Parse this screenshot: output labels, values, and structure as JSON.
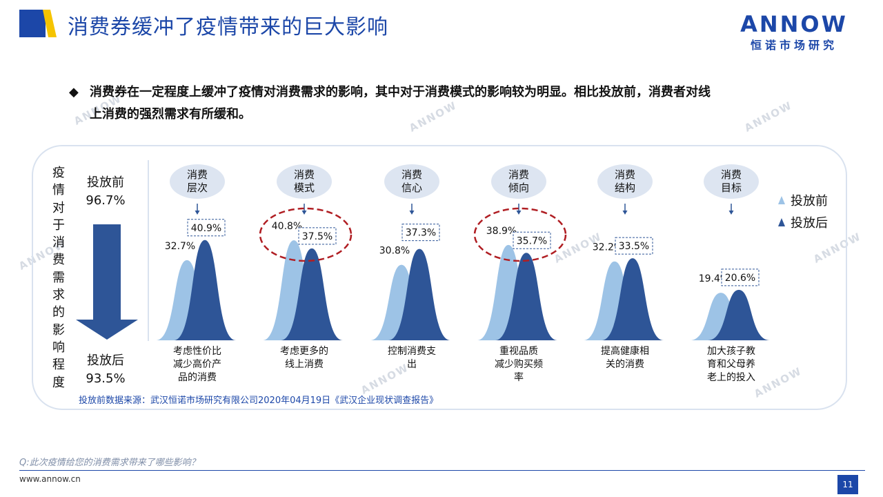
{
  "title": "消费券缓冲了疫情带来的巨大影响",
  "brand": {
    "name": "ANNOW",
    "sub": "恒诺市场研究"
  },
  "summary": {
    "line1": "消费券在一定程度上缓冲了疫情对消费需求的影响，其中对于消费模式的影响较为明显。相比投放前，消费者对线",
    "line2": "上消费的强烈需求有所缓和。"
  },
  "side_label": "疫情对于消费需求的影响程度",
  "before": {
    "label": "投放前",
    "value": "96.7%"
  },
  "after": {
    "label": "投放后",
    "value": "93.5%"
  },
  "chart_data": {
    "type": "area",
    "categories": [
      "消费层次",
      "消费模式",
      "消费信心",
      "消费倾向",
      "消费结构",
      "消费目标"
    ],
    "category_descriptions": [
      "考虑性价比减少高价产品的消费",
      "考虑更多的线上消费",
      "控制消费支出",
      "重视品质减少购买频率",
      "提高健康相关的消费",
      "加大孩子教育和父母养老上的投入"
    ],
    "series": [
      {
        "name": "投放前",
        "values": [
          32.7,
          40.8,
          30.8,
          38.9,
          32.2,
          19.4
        ],
        "color": "#9dc3e6"
      },
      {
        "name": "投放后",
        "values": [
          40.9,
          37.5,
          37.3,
          35.7,
          33.5,
          20.6
        ],
        "color": "#2e5597"
      }
    ],
    "labels_before": [
      "32.7%",
      "40.8%",
      "30.8%",
      "38.9%",
      "32.2%",
      "19.4%"
    ],
    "labels_after": [
      "40.9%",
      "37.5%",
      "37.3%",
      "35.7%",
      "33.5%",
      "20.6%"
    ],
    "highlighted": [
      "消费模式",
      "消费倾向"
    ],
    "legend_position": "right"
  },
  "bubble_lines": [
    [
      "消费",
      "层次"
    ],
    [
      "消费",
      "模式"
    ],
    [
      "消费",
      "信心"
    ],
    [
      "消费",
      "倾向"
    ],
    [
      "消费",
      "结构"
    ],
    [
      "消费",
      "目标"
    ]
  ],
  "desc_lines": [
    [
      "考虑性价比",
      "减少高价产",
      "品的消费"
    ],
    [
      "考虑更多的",
      "线上消费"
    ],
    [
      "控制消费支",
      "出"
    ],
    [
      "重视品质",
      "减少购买频",
      "率"
    ],
    [
      "提高健康相",
      "关的消费"
    ],
    [
      "加大孩子教",
      "育和父母养",
      "老上的投入"
    ]
  ],
  "legend": {
    "before": "投放前",
    "after": "投放后"
  },
  "source": "投放前数据来源：武汉恒诺市场研究有限公司2020年04月19日《武汉企业现状调查报告》",
  "question": "Q:此次疫情给您的消费需求带来了哪些影响？",
  "website": "www.annow.cn",
  "page_number": "11",
  "colors": {
    "brand": "#1c47a8",
    "accent": "#f5c400",
    "before": "#9dc3e6",
    "after": "#2e5597",
    "highlight": "#b01e23"
  }
}
